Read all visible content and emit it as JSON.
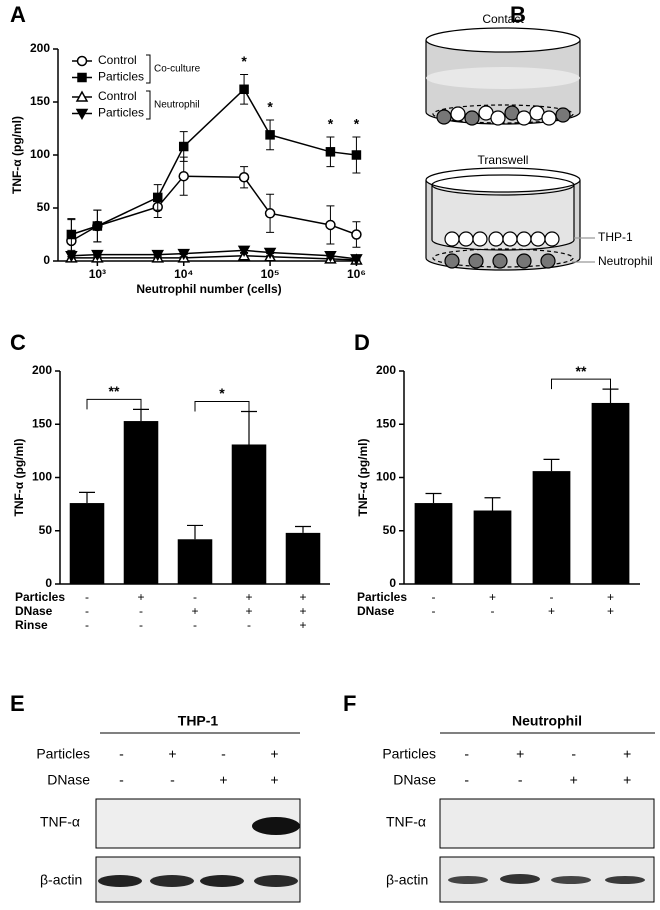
{
  "panel_labels": [
    "A",
    "B",
    "C",
    "D",
    "E",
    "F"
  ],
  "chart_data": [
    {
      "type": "line",
      "y_label": "TNF-α (pg/ml)",
      "x_label": "Neutrophil number (cells)",
      "log_x": true,
      "x": [
        500,
        1000,
        5000,
        10000,
        50000,
        100000,
        500000,
        1000000
      ],
      "xlim": [
        350,
        1100000
      ],
      "xticks": [
        {
          "value": 1000,
          "label": "10³"
        },
        {
          "value": 10000,
          "label": "10⁴"
        },
        {
          "value": 100000,
          "label": "10⁵"
        },
        {
          "value": 1000000,
          "label": "10⁶"
        }
      ],
      "ylim": [
        0,
        200
      ],
      "yticks": [
        0,
        50,
        100,
        150,
        200
      ],
      "legend_groups": [
        "Co-culture",
        "Neutrophil"
      ],
      "series": [
        {
          "name": "Control",
          "color": "#000000",
          "marker": "circle-open",
          "values": [
            19,
            33,
            51,
            80,
            79,
            45,
            34,
            25
          ],
          "errors": [
            20,
            15,
            10,
            18,
            10,
            18,
            18,
            12
          ]
        },
        {
          "name": "Particles",
          "color": "#000000",
          "marker": "square-filled",
          "values": [
            25,
            33,
            60,
            108,
            162,
            119,
            103,
            100
          ],
          "errors": [
            15,
            15,
            12,
            14,
            14,
            14,
            14,
            17
          ]
        },
        {
          "name": "Control",
          "color": "#000000",
          "marker": "triangle-up-open",
          "values": [
            3,
            3,
            3,
            3,
            5,
            4,
            2,
            1
          ],
          "errors": [
            1,
            1,
            1,
            1,
            2,
            1,
            1,
            1
          ]
        },
        {
          "name": "Particles",
          "color": "#000000",
          "marker": "triangle-down-filled",
          "values": [
            5,
            6,
            6,
            7,
            10,
            8,
            5,
            2
          ],
          "errors": [
            1,
            1,
            1,
            1,
            2,
            1,
            1,
            1
          ]
        }
      ],
      "annotations": [
        {
          "text": "*",
          "x": 50000
        },
        {
          "text": "*",
          "x": 100000
        },
        {
          "text": "*",
          "x": 500000
        },
        {
          "text": "*",
          "x": 1000000
        }
      ]
    },
    {
      "type": "bar",
      "y_label": "TNF-α (pg/ml)",
      "color": "#000000",
      "values": [
        76,
        153,
        42,
        131,
        48
      ],
      "errors": [
        10,
        11,
        13,
        31,
        6
      ],
      "ylim": [
        0,
        200
      ],
      "yticks": [
        0,
        50,
        100,
        150,
        200
      ],
      "conditions": [
        {
          "label": "Particles",
          "signs": [
            "-",
            "+",
            "-",
            "+",
            "+"
          ]
        },
        {
          "label": "DNase",
          "signs": [
            "-",
            "-",
            "+",
            "+",
            "+"
          ]
        },
        {
          "label": "Rinse",
          "signs": [
            "-",
            "-",
            "-",
            "-",
            "+"
          ]
        }
      ],
      "brackets": [
        {
          "from": 0,
          "to": 1,
          "text": "**"
        },
        {
          "from": 2,
          "to": 3,
          "text": "*"
        }
      ]
    },
    {
      "type": "bar",
      "y_label": "TNF-α (pg/ml)",
      "color": "#000000",
      "values": [
        76,
        69,
        106,
        170
      ],
      "errors": [
        9,
        12,
        11,
        13
      ],
      "ylim": [
        0,
        200
      ],
      "yticks": [
        0,
        50,
        100,
        150,
        200
      ],
      "conditions": [
        {
          "label": "Particles",
          "signs": [
            "-",
            "+",
            "-",
            "+"
          ]
        },
        {
          "label": "DNase",
          "signs": [
            "-",
            "-",
            "+",
            "+"
          ]
        }
      ],
      "brackets": [
        {
          "from": 2,
          "to": 3,
          "text": "**"
        }
      ]
    }
  ],
  "diagram": {
    "contact": "Contact",
    "transwell": "Transwell",
    "thp1": "THP-1",
    "neutrophil": "Neutrophil"
  },
  "blots": [
    {
      "title": "THP-1",
      "rows": [
        {
          "label": "Particles",
          "signs": [
            "-",
            "+",
            "-",
            "+"
          ]
        },
        {
          "label": "DNase",
          "signs": [
            "-",
            "-",
            "+",
            "+"
          ]
        }
      ],
      "bands": [
        "TNF-α",
        "β-actin"
      ]
    },
    {
      "title": "Neutrophil",
      "rows": [
        {
          "label": "Particles",
          "signs": [
            "-",
            "+",
            "-",
            "+"
          ]
        },
        {
          "label": "DNase",
          "signs": [
            "-",
            "-",
            "+",
            "+"
          ]
        }
      ],
      "bands": [
        "TNF-α",
        "β-actin"
      ]
    }
  ]
}
